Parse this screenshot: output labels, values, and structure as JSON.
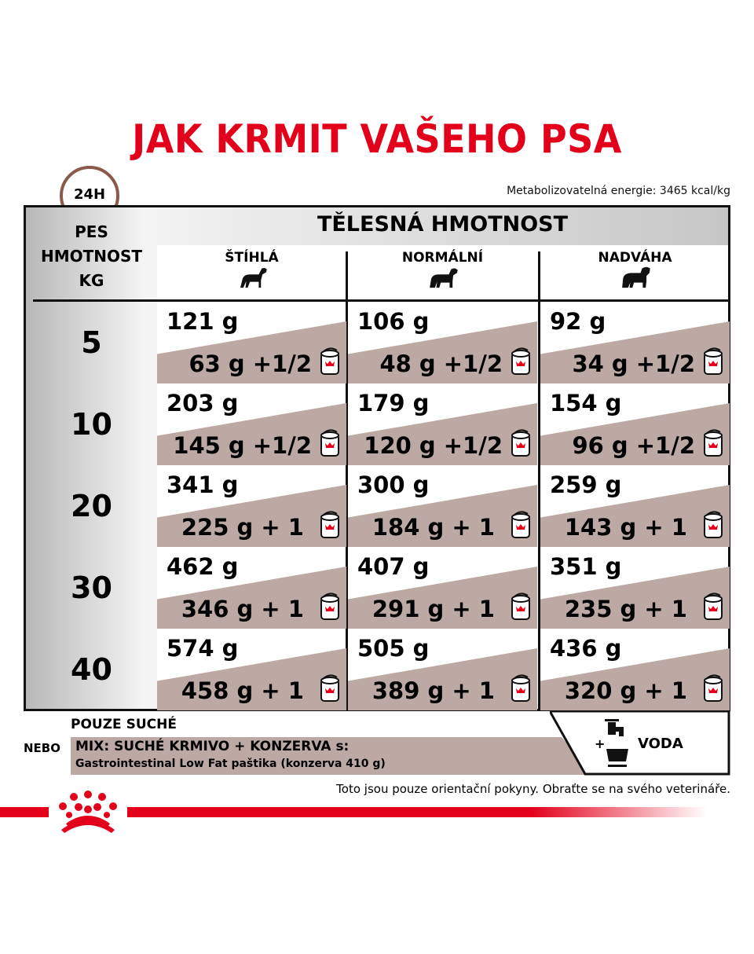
{
  "title": "JAK KRMIT VAŠEHO PSA",
  "energy": "Metabolizovatelná energie: 3465 kcal/kg",
  "clock_label": "24H",
  "header": {
    "left": [
      "PES",
      "HMOTNOST",
      "KG"
    ],
    "band": "TĚLESNÁ HMOTNOST",
    "columns": [
      "ŠTÍHLÁ",
      "NORMÁLNÍ",
      "NADVÁHA"
    ]
  },
  "rows": [
    {
      "kg": "5",
      "cells": [
        {
          "dry": "121 g",
          "wet": "63 g +1/2"
        },
        {
          "dry": "106 g",
          "wet": "48 g +1/2"
        },
        {
          "dry": " 92 g",
          "wet": "34 g +1/2"
        }
      ]
    },
    {
      "kg": "10",
      "cells": [
        {
          "dry": "203 g",
          "wet": "145 g +1/2"
        },
        {
          "dry": "179 g",
          "wet": "120 g +1/2"
        },
        {
          "dry": "154 g",
          "wet": "96 g +1/2"
        }
      ]
    },
    {
      "kg": "20",
      "cells": [
        {
          "dry": "341 g",
          "wet": "225 g + 1 "
        },
        {
          "dry": "300 g",
          "wet": "184 g + 1 "
        },
        {
          "dry": "259 g",
          "wet": "143 g + 1 "
        }
      ]
    },
    {
      "kg": "30",
      "cells": [
        {
          "dry": "462 g",
          "wet": "346 g + 1 "
        },
        {
          "dry": "407 g",
          "wet": "291 g + 1 "
        },
        {
          "dry": "351 g",
          "wet": "235 g + 1 "
        }
      ]
    },
    {
      "kg": "40",
      "cells": [
        {
          "dry": "574 g",
          "wet": "458 g + 1 "
        },
        {
          "dry": "505 g",
          "wet": "389 g + 1 "
        },
        {
          "dry": "436 g",
          "wet": "320 g + 1 "
        }
      ]
    }
  ],
  "legend": {
    "dry_only": "POUZE SUCHÉ",
    "or": "NEBO",
    "mix": "MIX: SUCHÉ KRMIVO + KONZERVA s:",
    "mix_product": "Gastrointestinal Low Fat paštika (konzerva 410 g)",
    "water_plus": "+",
    "water": "VODA"
  },
  "footnote": "Toto jsou pouze orientační pokyny. Obraťte se na svého veterináře.",
  "brand": "Royal Canin",
  "colors": {
    "accent": "#e2001a",
    "wet_band": "#bca9a3"
  }
}
